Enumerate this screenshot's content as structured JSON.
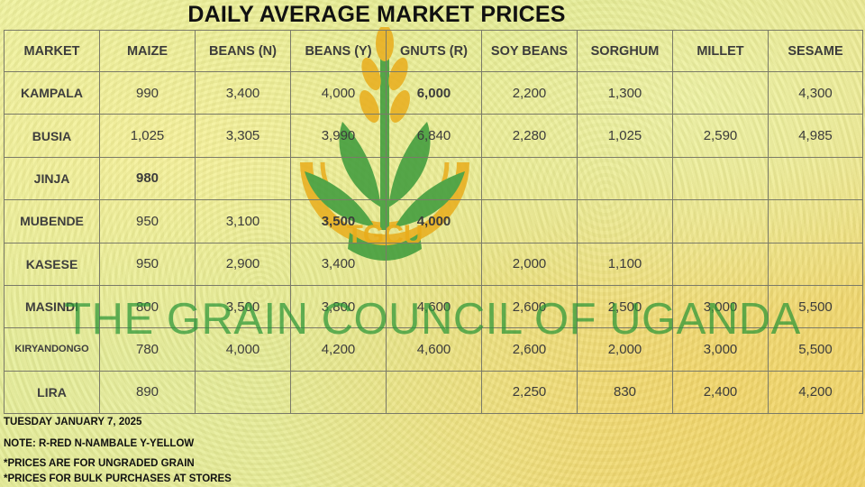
{
  "title": "DAILY AVERAGE MARKET PRICES",
  "logo_text": "TGCU",
  "watermark": "THE GRAIN COUNCIL OF UGANDA",
  "colors": {
    "watermark_green": "#2a9636",
    "logo_gold": "#e9ad1c",
    "logo_green": "#3b9a3a"
  },
  "columns": [
    "MARKET",
    "MAIZE",
    "BEANS (N)",
    "BEANS (Y)",
    "GNUTS (R)",
    "SOY BEANS",
    "SORGHUM",
    "MILLET",
    "SESAME"
  ],
  "rows": [
    [
      "KAMPALA",
      "990",
      "3,400",
      "4,000",
      "6,000",
      "2,200",
      "1,300",
      "",
      "4,300"
    ],
    [
      "BUSIA",
      "1,025",
      "3,305",
      "3,990",
      "6,840",
      "2,280",
      "1,025",
      "2,590",
      "4,985"
    ],
    [
      "JINJA",
      "980",
      "",
      "",
      "",
      "",
      "",
      "",
      ""
    ],
    [
      "MUBENDE",
      "950",
      "3,100",
      "3,500",
      "4,000",
      "",
      "",
      "",
      ""
    ],
    [
      "KASESE",
      "950",
      "2,900",
      "3,400",
      "",
      "2,000",
      "1,100",
      "",
      ""
    ],
    [
      "MASINDI",
      "800",
      "3,500",
      "3,800",
      "4,600",
      "2,600",
      "2,500",
      "3,000",
      "5,500"
    ],
    [
      "KIRYANDONGO",
      "780",
      "4,000",
      "4,200",
      "4,600",
      "2,600",
      "2,000",
      "3,000",
      "5,500"
    ],
    [
      "LIRA",
      "890",
      "",
      "",
      "",
      "2,250",
      "830",
      "2,400",
      "4,200"
    ]
  ],
  "footer": {
    "date": "TUESDAY JANUARY 7, 2025",
    "note": "NOTE: R-RED N-NAMBALE Y-YELLOW",
    "line1": "*PRICES ARE FOR UNGRADED GRAIN",
    "line2": "*PRICES FOR BULK PURCHASES AT STORES"
  }
}
